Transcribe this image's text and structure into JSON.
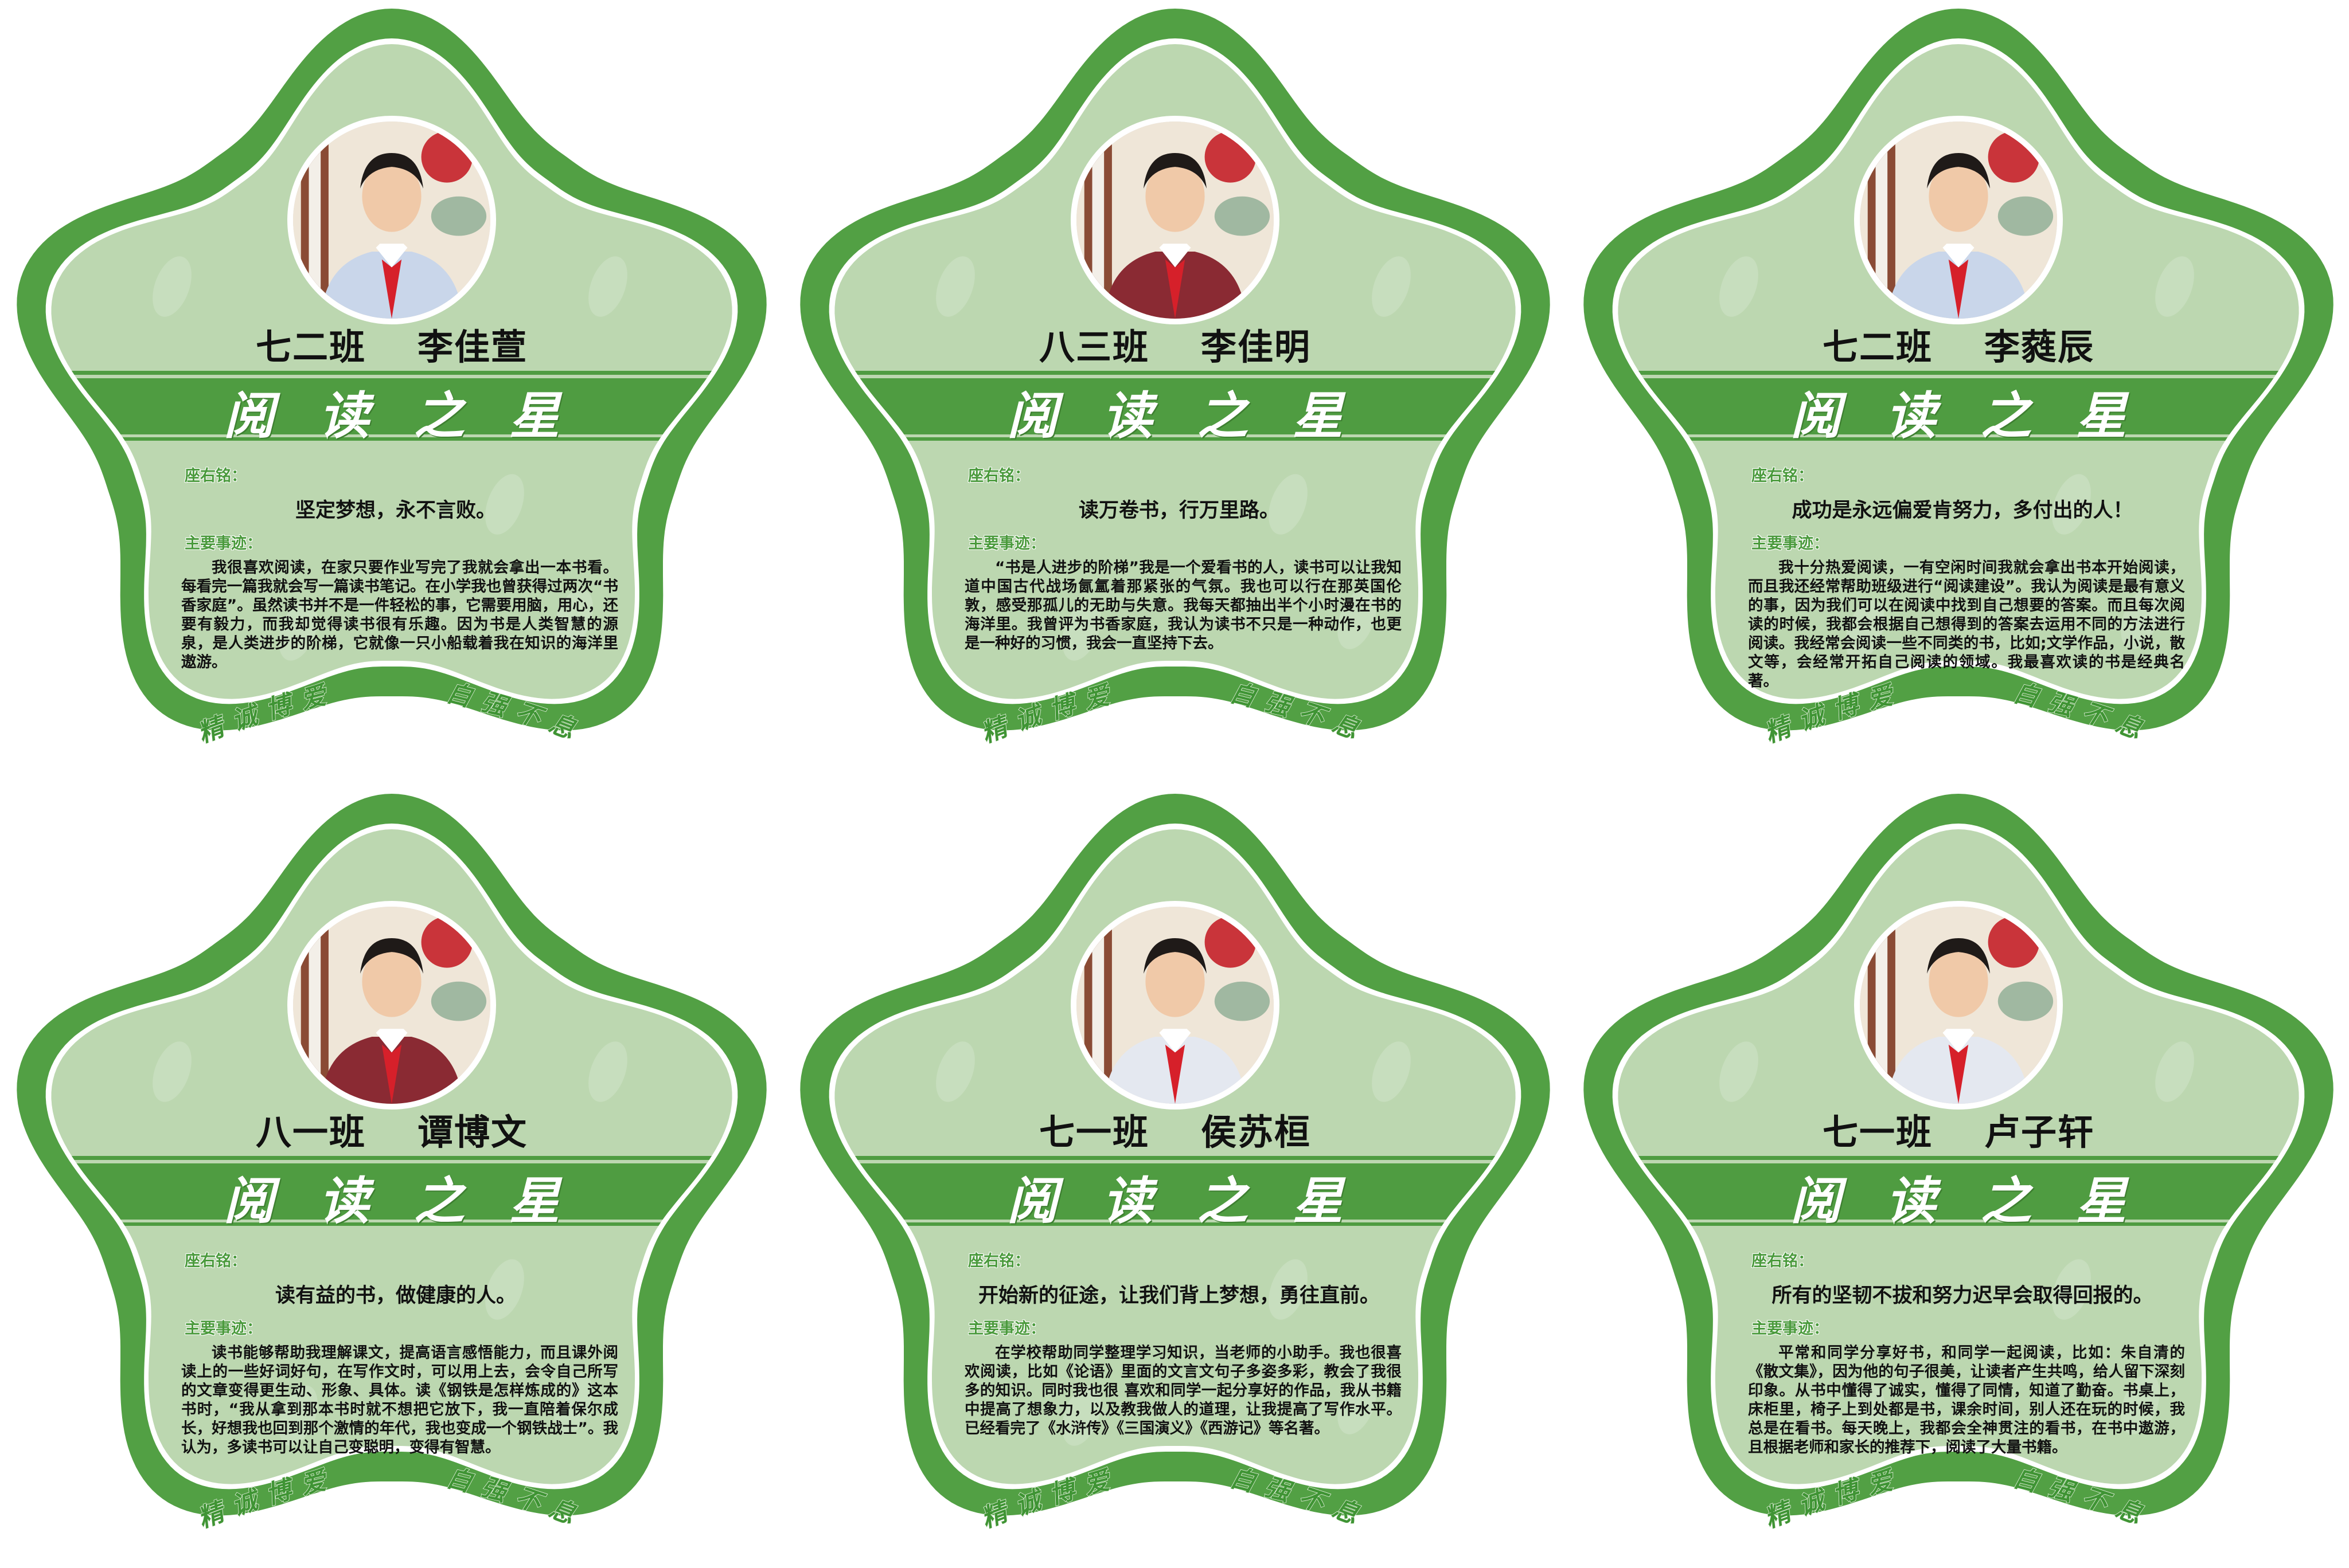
{
  "common": {
    "banner_title": "阅读之星",
    "motto_label": "座右铭：",
    "deeds_label": "主要事迹：",
    "bottom_left": "精诚博爱",
    "bottom_right": "自强不息",
    "colors": {
      "border_green": "#52a044",
      "inner_green": "#bcd7b0",
      "banner_green": "#4f9c41",
      "label_green": "#4a9a3c"
    }
  },
  "students": [
    {
      "class": "七二班",
      "name": "李佳萱",
      "shirt_color": "#c9d6ea",
      "motto": "坚定梦想，永不言败。",
      "deeds": "我很喜欢阅读，在家只要作业写完了我就会拿出一本书看。每看完一篇我就会写一篇读书笔记。在小学我也曾获得过两次“书香家庭”。虽然读书并不是一件轻松的事，它需要用脑，用心，还要有毅力，而我却觉得读书很有乐趣。因为书是人类智慧的源泉，是人类进步的阶梯，它就像一只小船载着我在知识的海洋里遨游。"
    },
    {
      "class": "八三班",
      "name": "李佳明",
      "shirt_color": "#8a2a33",
      "motto": "读万卷书，行万里路。",
      "deeds": "“书是人进步的阶梯”我是一个爱看书的人，读书可以让我知道中国古代战场氤氲着那紧张的气氛。我也可以行在那英国伦敦，感受那孤儿的无助与失意。我每天都抽出半个小时漫在书的海洋里。我曾评为书香家庭，我认为读书不只是一种动作，也更是一种好的习惯，我会一直坚持下去。"
    },
    {
      "class": "七二班",
      "name": "李蕤辰",
      "shirt_color": "#c9d6ea",
      "motto": "成功是永远偏爱肯努力，多付出的人！",
      "deeds": "我十分热爱阅读，一有空闲时间我就会拿出书本开始阅读，而且我还经常帮助班级进行“阅读建设”。我认为阅读是最有意义的事，因为我们可以在阅读中找到自己想要的答案。而且每次阅读的时候，我都会根据自己想得到的答案去运用不同的方法进行阅读。我经常会阅读一些不同类的书，比如;文学作品，小说，散文等，会经常开拓自己阅读的领域。我最喜欢读的书是经典名著。"
    },
    {
      "class": "八一班",
      "name": "谭博文",
      "shirt_color": "#8a2a33",
      "motto": "读有益的书，做健康的人。",
      "deeds": "读书能够帮助我理解课文，提高语言感悟能力，而且课外阅读上的一些好词好句，在写作文时，可以用上去，会令自己所写的文章变得更生动、形象、具体。读《钢铁是怎样炼成的》这本书时，“我从拿到那本书时就不想把它放下，我一直陪着保尔成长，好想我也回到那个激情的年代，我也变成一个钢铁战士”。我认为，多读书可以让自己变聪明，变得有智慧。"
    },
    {
      "class": "七一班",
      "name": "侯苏桓",
      "shirt_color": "#e4e8f0",
      "motto": "开始新的征途，让我们背上梦想，勇往直前。",
      "deeds": "在学校帮助同学整理学习知识，当老师的小助手。我也很喜欢阅读，比如《论语》里面的文言文句子多姿多彩，教会了我很多的知识。同时我也很 喜欢和同学一起分享好的作品，我从书籍中提高了想象力，以及教我做人的道理，让我提高了写作水平。已经看完了《水浒传》《三国演义》《西游记》等名著。"
    },
    {
      "class": "七一班",
      "name": "卢子轩",
      "shirt_color": "#e4e8f0",
      "motto": "所有的坚韧不拔和努力迟早会取得回报的。",
      "deeds": "平常和同学分享好书，和同学一起阅读，比如：朱自清的《散文集》，因为他的句子很美，让读者产生共鸣，给人留下深刻印象。从书中懂得了诚实，懂得了同情，知道了勤奋。书桌上，床柜里，椅子上到处都是书，课余时间，别人还在玩的时候，我总是在看书。每天晚上，我都会全神贯注的看书，在书中遨游，且根据老师和家长的推荐下，阅读了大量书籍。"
    }
  ]
}
